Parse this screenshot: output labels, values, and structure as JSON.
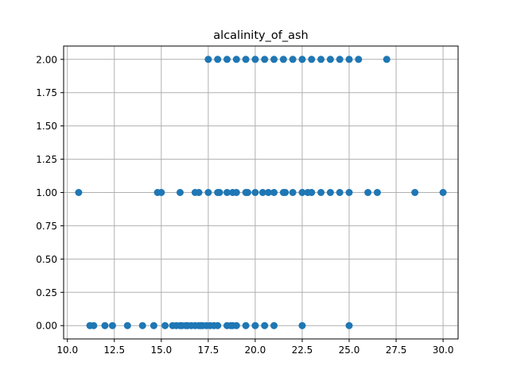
{
  "chart_data": {
    "type": "scatter",
    "title": "alcalinity_of_ash",
    "xlabel": "",
    "ylabel": "",
    "xlim": [
      9.8,
      30.8
    ],
    "ylim": [
      -0.1,
      2.1
    ],
    "grid": true,
    "x_ticks": [
      "10.0",
      "12.5",
      "15.0",
      "17.5",
      "20.0",
      "22.5",
      "25.0",
      "27.5",
      "30.0"
    ],
    "y_ticks": [
      "0.00",
      "0.25",
      "0.50",
      "0.75",
      "1.00",
      "1.25",
      "1.50",
      "1.75",
      "2.00"
    ],
    "marker_color": "#1f77b4",
    "points": [
      {
        "x": 11.2,
        "y": 0
      },
      {
        "x": 11.4,
        "y": 0
      },
      {
        "x": 12.0,
        "y": 0
      },
      {
        "x": 12.4,
        "y": 0
      },
      {
        "x": 13.2,
        "y": 0
      },
      {
        "x": 14.0,
        "y": 0
      },
      {
        "x": 14.6,
        "y": 0
      },
      {
        "x": 15.2,
        "y": 0
      },
      {
        "x": 15.6,
        "y": 0
      },
      {
        "x": 15.8,
        "y": 0
      },
      {
        "x": 16.0,
        "y": 0
      },
      {
        "x": 16.1,
        "y": 0
      },
      {
        "x": 16.3,
        "y": 0
      },
      {
        "x": 16.4,
        "y": 0
      },
      {
        "x": 16.6,
        "y": 0
      },
      {
        "x": 16.8,
        "y": 0
      },
      {
        "x": 17.0,
        "y": 0
      },
      {
        "x": 17.1,
        "y": 0
      },
      {
        "x": 17.2,
        "y": 0
      },
      {
        "x": 17.4,
        "y": 0
      },
      {
        "x": 17.6,
        "y": 0
      },
      {
        "x": 17.8,
        "y": 0
      },
      {
        "x": 18.0,
        "y": 0
      },
      {
        "x": 18.5,
        "y": 0
      },
      {
        "x": 18.7,
        "y": 0
      },
      {
        "x": 18.8,
        "y": 0
      },
      {
        "x": 19.0,
        "y": 0
      },
      {
        "x": 19.5,
        "y": 0
      },
      {
        "x": 20.0,
        "y": 0
      },
      {
        "x": 20.5,
        "y": 0
      },
      {
        "x": 21.0,
        "y": 0
      },
      {
        "x": 22.5,
        "y": 0
      },
      {
        "x": 25.0,
        "y": 0
      },
      {
        "x": 10.6,
        "y": 1
      },
      {
        "x": 14.8,
        "y": 1
      },
      {
        "x": 15.0,
        "y": 1
      },
      {
        "x": 16.0,
        "y": 1
      },
      {
        "x": 16.8,
        "y": 1
      },
      {
        "x": 17.0,
        "y": 1
      },
      {
        "x": 17.5,
        "y": 1
      },
      {
        "x": 18.0,
        "y": 1
      },
      {
        "x": 18.1,
        "y": 1
      },
      {
        "x": 18.5,
        "y": 1
      },
      {
        "x": 18.8,
        "y": 1
      },
      {
        "x": 19.0,
        "y": 1
      },
      {
        "x": 19.5,
        "y": 1
      },
      {
        "x": 19.6,
        "y": 1
      },
      {
        "x": 20.0,
        "y": 1
      },
      {
        "x": 20.4,
        "y": 1
      },
      {
        "x": 20.7,
        "y": 1
      },
      {
        "x": 21.0,
        "y": 1
      },
      {
        "x": 21.5,
        "y": 1
      },
      {
        "x": 21.6,
        "y": 1
      },
      {
        "x": 22.0,
        "y": 1
      },
      {
        "x": 22.5,
        "y": 1
      },
      {
        "x": 22.8,
        "y": 1
      },
      {
        "x": 23.0,
        "y": 1
      },
      {
        "x": 23.5,
        "y": 1
      },
      {
        "x": 24.0,
        "y": 1
      },
      {
        "x": 24.5,
        "y": 1
      },
      {
        "x": 25.0,
        "y": 1
      },
      {
        "x": 26.0,
        "y": 1
      },
      {
        "x": 26.5,
        "y": 1
      },
      {
        "x": 28.5,
        "y": 1
      },
      {
        "x": 30.0,
        "y": 1
      },
      {
        "x": 17.5,
        "y": 2
      },
      {
        "x": 18.0,
        "y": 2
      },
      {
        "x": 18.5,
        "y": 2
      },
      {
        "x": 19.0,
        "y": 2
      },
      {
        "x": 19.5,
        "y": 2
      },
      {
        "x": 20.0,
        "y": 2
      },
      {
        "x": 20.5,
        "y": 2
      },
      {
        "x": 21.0,
        "y": 2
      },
      {
        "x": 21.5,
        "y": 2
      },
      {
        "x": 22.0,
        "y": 2
      },
      {
        "x": 22.5,
        "y": 2
      },
      {
        "x": 23.0,
        "y": 2
      },
      {
        "x": 23.5,
        "y": 2
      },
      {
        "x": 24.0,
        "y": 2
      },
      {
        "x": 24.5,
        "y": 2
      },
      {
        "x": 25.0,
        "y": 2
      },
      {
        "x": 25.5,
        "y": 2
      },
      {
        "x": 27.0,
        "y": 2
      }
    ]
  }
}
